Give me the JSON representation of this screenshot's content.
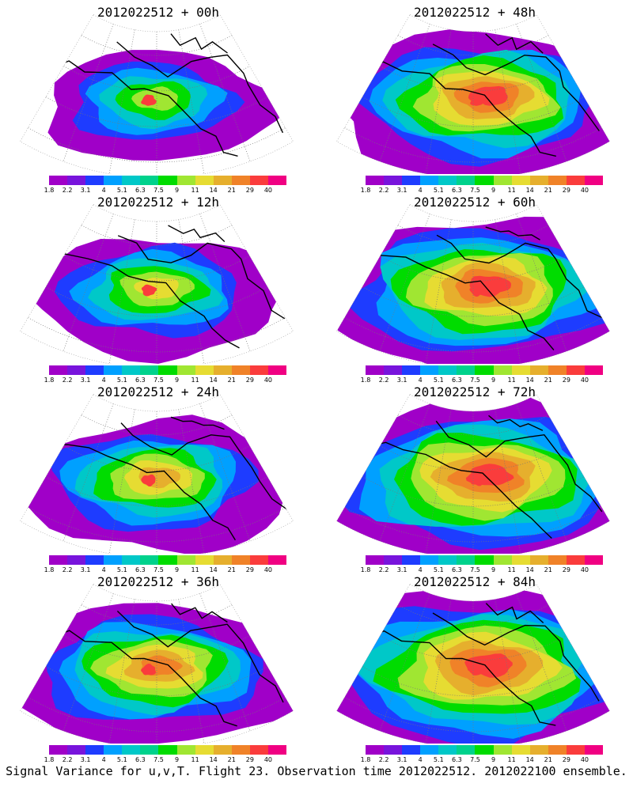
{
  "figure": {
    "caption": "Signal Variance for u,v,T. Flight 23. Observation time 2012022512. 2012022100 ensemble."
  },
  "colorbar": {
    "labels": [
      "1.8",
      "2.2",
      "3.1",
      "4",
      "5.1",
      "6.3",
      "7.5",
      "9",
      "11",
      "14",
      "21",
      "29",
      "40"
    ],
    "colors": [
      "#a000c8",
      "#7814dc",
      "#1e3cff",
      "#00a0ff",
      "#00c8c8",
      "#00d28c",
      "#00dc00",
      "#a0e632",
      "#e6dc32",
      "#e6af2d",
      "#f08228",
      "#fa3c3c",
      "#f00082"
    ]
  },
  "panels": [
    {
      "title": "2012022512 + 00h",
      "level": 0
    },
    {
      "title": "2012022512 + 48h",
      "level": 4
    },
    {
      "title": "2012022512 + 12h",
      "level": 1
    },
    {
      "title": "2012022512 + 60h",
      "level": 5
    },
    {
      "title": "2012022512 + 24h",
      "level": 2
    },
    {
      "title": "2012022512 + 72h",
      "level": 6
    },
    {
      "title": "2012022512 + 36h",
      "level": 3
    },
    {
      "title": "2012022512 + 84h",
      "level": 7
    }
  ]
}
